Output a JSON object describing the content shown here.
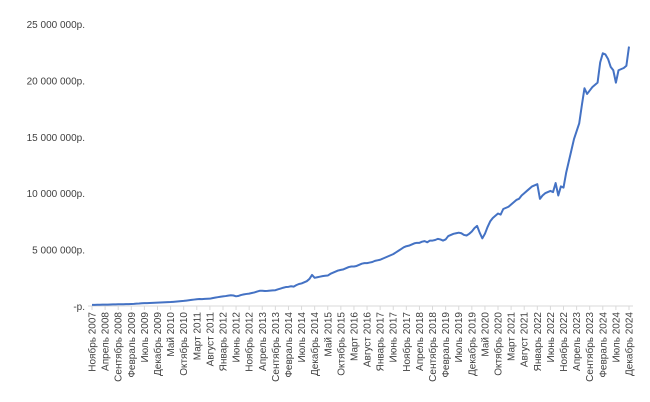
{
  "chart_data": {
    "type": "line",
    "categories": [
      "Ноябрь 2007",
      null,
      null,
      null,
      null,
      "Апрель 2008",
      null,
      null,
      null,
      null,
      "Сентябрь 2008",
      null,
      null,
      null,
      null,
      "Февраль 2009",
      null,
      null,
      null,
      null,
      "Июль 2009",
      null,
      null,
      null,
      null,
      "Декабрь 2009",
      null,
      null,
      null,
      null,
      "Май 2010",
      null,
      null,
      null,
      null,
      "Октябрь 2010",
      null,
      null,
      null,
      null,
      "Март 2011",
      null,
      null,
      null,
      null,
      "Август 2011",
      null,
      null,
      null,
      null,
      "Январь 2012",
      null,
      null,
      null,
      null,
      "Июнь 2012",
      null,
      null,
      null,
      null,
      "Ноябрь 2012",
      null,
      null,
      null,
      null,
      "Апрель 2013",
      null,
      null,
      null,
      null,
      "Сентябрь 2013",
      null,
      null,
      null,
      null,
      "Февраль 2014",
      null,
      null,
      null,
      null,
      "Июль 2014",
      null,
      null,
      null,
      null,
      "Декабрь 2014",
      null,
      null,
      null,
      null,
      "Май 2015",
      null,
      null,
      null,
      null,
      "Октябрь 2015",
      null,
      null,
      null,
      null,
      "Март 2016",
      null,
      null,
      null,
      null,
      "Август 2016",
      null,
      null,
      null,
      null,
      "Январь 2017",
      null,
      null,
      null,
      null,
      "Июнь 2017",
      null,
      null,
      null,
      null,
      "Ноябрь 2017",
      null,
      null,
      null,
      null,
      "Апрель 2018",
      null,
      null,
      null,
      null,
      "Сентябрь 2018",
      null,
      null,
      null,
      null,
      "Февраль 2019",
      null,
      null,
      null,
      null,
      "Июль 2019",
      null,
      null,
      null,
      null,
      "Декабрь 2019",
      null,
      null,
      null,
      null,
      "Май 2020",
      null,
      null,
      null,
      null,
      "Октябрь 2020",
      null,
      null,
      null,
      null,
      "Март 2021",
      null,
      null,
      null,
      null,
      "Август 2021",
      null,
      null,
      null,
      null,
      "Январь 2022",
      null,
      null,
      null,
      null,
      "Июнь 2022",
      null,
      null,
      null,
      null,
      "Ноябрь 2022",
      null,
      null,
      null,
      null,
      "Апрель 2023",
      null,
      null,
      null,
      null,
      "Сентябрь 2023",
      null,
      null,
      null,
      null,
      "Февраль 2024",
      null,
      null,
      null,
      null,
      "Июль 2024",
      null,
      null,
      null,
      null,
      "Декабрь 2024"
    ],
    "values": [
      100000,
      100000,
      110000,
      110000,
      120000,
      120000,
      120000,
      130000,
      140000,
      140000,
      150000,
      150000,
      160000,
      170000,
      170000,
      180000,
      190000,
      210000,
      220000,
      240000,
      250000,
      260000,
      270000,
      280000,
      290000,
      300000,
      310000,
      320000,
      330000,
      340000,
      350000,
      370000,
      390000,
      410000,
      430000,
      450000,
      480000,
      510000,
      540000,
      570000,
      600000,
      620000,
      610000,
      630000,
      640000,
      650000,
      700000,
      740000,
      780000,
      820000,
      850000,
      880000,
      920000,
      950000,
      930000,
      860000,
      900000,
      980000,
      1030000,
      1070000,
      1100000,
      1150000,
      1200000,
      1280000,
      1350000,
      1350000,
      1330000,
      1340000,
      1360000,
      1380000,
      1400000,
      1480000,
      1550000,
      1620000,
      1680000,
      1700000,
      1750000,
      1720000,
      1850000,
      1950000,
      2000000,
      2100000,
      2200000,
      2400000,
      2750000,
      2500000,
      2550000,
      2600000,
      2650000,
      2680000,
      2700000,
      2850000,
      2950000,
      3050000,
      3150000,
      3200000,
      3250000,
      3350000,
      3450000,
      3500000,
      3500000,
      3550000,
      3650000,
      3750000,
      3800000,
      3800000,
      3850000,
      3900000,
      4000000,
      4050000,
      4100000,
      4200000,
      4300000,
      4400000,
      4500000,
      4600000,
      4750000,
      4900000,
      5050000,
      5200000,
      5300000,
      5350000,
      5450000,
      5550000,
      5600000,
      5600000,
      5700000,
      5750000,
      5650000,
      5800000,
      5800000,
      5850000,
      5950000,
      5900000,
      5800000,
      5900000,
      6200000,
      6300000,
      6400000,
      6450000,
      6500000,
      6450000,
      6300000,
      6250000,
      6400000,
      6600000,
      6900000,
      7100000,
      6500000,
      6000000,
      6400000,
      7000000,
      7500000,
      7800000,
      8000000,
      8200000,
      8100000,
      8600000,
      8700000,
      8800000,
      9000000,
      9200000,
      9400000,
      9500000,
      9800000,
      10000000,
      10200000,
      10400000,
      10600000,
      10700000,
      10800000,
      9500000,
      9800000,
      10000000,
      10100000,
      10200000,
      10100000,
      10900000,
      9800000,
      10600000,
      10500000,
      11800000,
      12800000,
      13800000,
      14800000,
      15500000,
      16200000,
      17800000,
      19300000,
      18800000,
      19100000,
      19400000,
      19600000,
      19800000,
      21600000,
      22400000,
      22300000,
      21900000,
      21200000,
      20900000,
      19800000,
      20900000,
      21000000,
      21100000,
      21300000,
      23000000
    ],
    "color": "#4472c4",
    "ylim": [
      0,
      25000000
    ],
    "yticks": [
      {
        "value": 0,
        "label": "-р."
      },
      {
        "value": 5000000,
        "label": "5 000 000р."
      },
      {
        "value": 10000000,
        "label": "10 000 000р."
      },
      {
        "value": 15000000,
        "label": "15 000 000р."
      },
      {
        "value": 20000000,
        "label": "20 000 000р."
      },
      {
        "value": 25000000,
        "label": "25 000 000р."
      }
    ],
    "grid": false
  }
}
